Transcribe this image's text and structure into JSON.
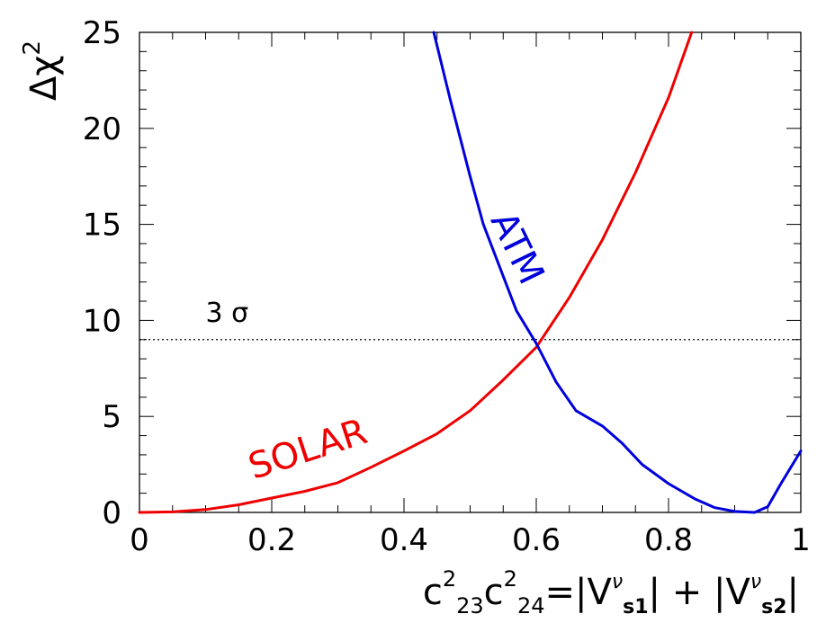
{
  "chart_data": {
    "type": "line",
    "xlim": [
      0,
      1
    ],
    "ylim": [
      0,
      25
    ],
    "xticks": [
      0,
      0.2,
      0.4,
      0.6,
      0.8,
      1
    ],
    "xtick_labels": [
      "0",
      "0.2",
      "0.4",
      "0.6",
      "0.8",
      "1"
    ],
    "yticks": [
      0,
      5,
      10,
      15,
      20,
      25
    ],
    "ytick_labels": [
      "0",
      "5",
      "10",
      "15",
      "20",
      "25"
    ],
    "grid": false,
    "ylabel": {
      "base": "Δχ",
      "sup": "2"
    },
    "xlabel": {
      "c1": "c",
      "sup1": "2",
      "sub1": "23",
      "c2": "c",
      "sup2": "2",
      "sub2": "24",
      "eq": "=|V",
      "nu1": "ν",
      "s1": "s1",
      "mid": "| + |V",
      "nu2": "ν",
      "s2": "s2",
      "end": "|"
    },
    "reference_line": {
      "y": 9,
      "label": "3 σ",
      "style": "dotted"
    },
    "series": [
      {
        "name": "SOLAR",
        "color": "#ee0000",
        "x": [
          0.0,
          0.05,
          0.1,
          0.15,
          0.2,
          0.25,
          0.3,
          0.35,
          0.4,
          0.45,
          0.5,
          0.55,
          0.6,
          0.65,
          0.7,
          0.75,
          0.8,
          0.835
        ],
        "y": [
          0.0,
          0.03,
          0.15,
          0.4,
          0.75,
          1.1,
          1.55,
          2.35,
          3.2,
          4.1,
          5.3,
          6.9,
          8.6,
          11.2,
          14.2,
          17.7,
          21.6,
          25.0
        ]
      },
      {
        "name": "ATM",
        "color": "#0000dd",
        "x": [
          0.445,
          0.47,
          0.5,
          0.52,
          0.55,
          0.57,
          0.6,
          0.63,
          0.66,
          0.7,
          0.73,
          0.76,
          0.8,
          0.84,
          0.87,
          0.9,
          0.93,
          0.95,
          0.97,
          1.0
        ],
        "y": [
          25.0,
          21.5,
          17.5,
          15.0,
          12.3,
          10.5,
          8.8,
          6.8,
          5.3,
          4.5,
          3.6,
          2.5,
          1.5,
          0.7,
          0.25,
          0.05,
          0.0,
          0.3,
          1.5,
          3.2
        ]
      }
    ],
    "annotations": [
      {
        "text": "SOLAR",
        "color": "#ee0000",
        "x": 0.26,
        "y": 2.7,
        "rotate": -18
      },
      {
        "text": "ATM",
        "color": "#0000dd",
        "x": 0.555,
        "y": 13.5,
        "rotate": 64
      }
    ]
  }
}
